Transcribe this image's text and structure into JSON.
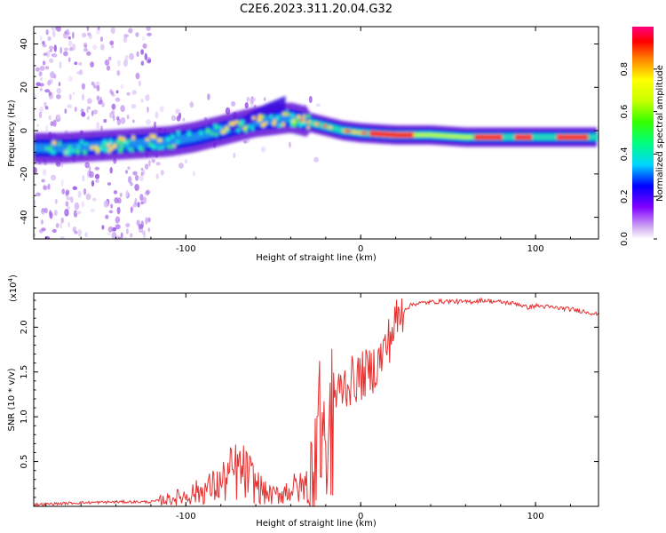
{
  "figure": {
    "title": "C2E6.2023.311.20.04.G32"
  },
  "chart_data": [
    {
      "type": "heatmap",
      "title": "",
      "xlabel": "Height of straight line (km)",
      "ylabel": "Frequency (Hz)",
      "xlim": [
        -187,
        136
      ],
      "ylim": [
        -50,
        48
      ],
      "xticks": [
        -100,
        0,
        100
      ],
      "xtick_labels": [
        "-100",
        "0",
        "100"
      ],
      "yticks": [
        -40,
        -20,
        0,
        20,
        40
      ],
      "ytick_labels": [
        "-40",
        "-20",
        "0",
        "20",
        "40"
      ],
      "ridge": {
        "x": [
          -187,
          -170,
          -150,
          -130,
          -110,
          -95,
          -80,
          -70,
          -60,
          -50,
          -40,
          -30,
          -20,
          -10,
          0,
          20,
          40,
          60,
          80,
          90,
          100,
          120,
          136
        ],
        "y": [
          -8,
          -8,
          -7,
          -6,
          -5,
          -3,
          0,
          2,
          4,
          5,
          6,
          4,
          2,
          0,
          -1,
          -2,
          -2,
          -3,
          -3,
          -3,
          -3,
          -3,
          -3
        ]
      },
      "colorbar": {
        "label": "Normalized spectral amplitude",
        "ticks": [
          0.0,
          0.2,
          0.4,
          0.6,
          0.8
        ],
        "tick_labels": [
          "0.0",
          "0.2",
          "0.4",
          "0.6",
          "0.8"
        ]
      }
    },
    {
      "type": "line",
      "title": "",
      "xlabel": "Height of straight line (km)",
      "ylabel": "SNR (10 * v/v)",
      "scale_label": "(x10",
      "scale_exp": "4",
      "scale_close": ")",
      "xlim": [
        -187,
        136
      ],
      "ylim": [
        0,
        2.38
      ],
      "xticks": [
        -100,
        0,
        100
      ],
      "xtick_labels": [
        "-100",
        "0",
        "100"
      ],
      "yticks": [
        0.5,
        1.0,
        1.5,
        2.0
      ],
      "ytick_labels": [
        "0.5",
        "1.0",
        "1.5",
        "2.0"
      ],
      "series": [
        {
          "name": "SNR",
          "color": "#e83030",
          "x": [
            -187,
            -160,
            -140,
            -130,
            -120,
            -110,
            -100,
            -90,
            -80,
            -75,
            -70,
            -65,
            -60,
            -55,
            -50,
            -45,
            -40,
            -35,
            -30,
            -27,
            -25,
            -22,
            -20,
            -15,
            -10,
            -5,
            0,
            5,
            10,
            15,
            20,
            25,
            30,
            40,
            50,
            60,
            70,
            80,
            90,
            95,
            100,
            110,
            120,
            130,
            136
          ],
          "y": [
            0.02,
            0.04,
            0.05,
            0.05,
            0.05,
            0.08,
            0.12,
            0.18,
            0.25,
            0.35,
            0.4,
            0.35,
            0.25,
            0.15,
            0.12,
            0.15,
            0.2,
            0.2,
            0.25,
            0.55,
            0.9,
            0.9,
            0.85,
            1.2,
            1.35,
            1.4,
            1.45,
            1.5,
            1.6,
            1.8,
            2.05,
            2.2,
            2.26,
            2.28,
            2.29,
            2.28,
            2.3,
            2.28,
            2.26,
            2.22,
            2.24,
            2.22,
            2.2,
            2.17,
            2.14
          ]
        }
      ]
    }
  ]
}
